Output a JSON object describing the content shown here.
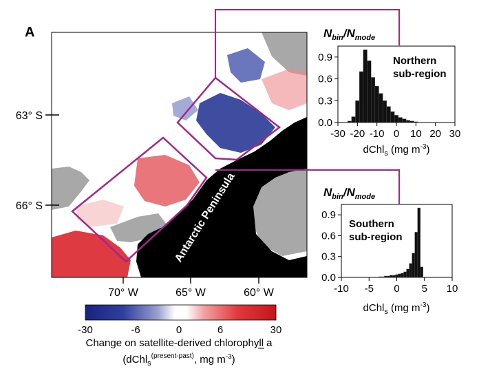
{
  "panel_label": "A",
  "map": {
    "lat_ticks": [
      "63° S",
      "66° S"
    ],
    "lon_ticks": [
      "70° W",
      "65° W",
      "60° W"
    ],
    "land_label": "Antarctic Peninsula",
    "colors": {
      "land": "#000000",
      "no_data": "#a8a8a8",
      "increase": "#d9262c",
      "decrease": "#1f2f8f",
      "outline": "#a3268e"
    }
  },
  "colorbar": {
    "ticks": [
      "-30",
      "-6",
      "0",
      "6",
      "30"
    ],
    "caption_line1": "Change on satellite-derived chlorophyll a",
    "caption_line2_prefix": "(dChl",
    "caption_line2_sub": "s",
    "caption_line2_sup": "(present-past)",
    "caption_line2_suffix": ", mg m",
    "caption_line2_unit_sup": "-3",
    "caption_line2_end": ")"
  },
  "chart_data": [
    {
      "type": "bar",
      "title": "Northern sub-region",
      "ylabel": "Nbin/Nmode",
      "xlabel": "dChls (mg m-3)",
      "xlim": [
        -30,
        30
      ],
      "ylim": [
        0,
        1.05
      ],
      "xticks": [
        "-30",
        "-20",
        "-10",
        "0",
        "10",
        "20",
        "30"
      ],
      "yticks": [
        "0.0",
        "0.3",
        "0.6",
        "0.9"
      ],
      "bin_width": 2,
      "x": [
        -24,
        -22,
        -20,
        -18,
        -16,
        -14,
        -12,
        -10,
        -8,
        -6,
        -4,
        -2,
        0,
        2,
        4,
        6,
        8,
        10
      ],
      "values": [
        0.02,
        0.08,
        0.3,
        0.7,
        1.0,
        0.85,
        0.62,
        0.5,
        0.4,
        0.3,
        0.22,
        0.15,
        0.1,
        0.07,
        0.05,
        0.03,
        0.02,
        0.01
      ]
    },
    {
      "type": "bar",
      "title": "Southern sub-region",
      "ylabel": "Nbin/Nmode",
      "xlabel": "dChls (mg m-3)",
      "xlim": [
        -10,
        10
      ],
      "ylim": [
        0,
        1.05
      ],
      "xticks": [
        "-10",
        "-5",
        "0",
        "5",
        "10"
      ],
      "yticks": [
        "0.0",
        "0.3",
        "0.6",
        "0.9"
      ],
      "bin_width": 0.5,
      "x": [
        -3,
        -2.5,
        -2,
        -1.5,
        -1,
        -0.5,
        0,
        0.5,
        1,
        1.5,
        2,
        2.5,
        3,
        3.5,
        4,
        4.5
      ],
      "values": [
        0.01,
        0.01,
        0.02,
        0.02,
        0.03,
        0.03,
        0.04,
        0.05,
        0.06,
        0.08,
        0.12,
        0.2,
        0.35,
        0.65,
        1.0,
        0.15
      ]
    }
  ]
}
